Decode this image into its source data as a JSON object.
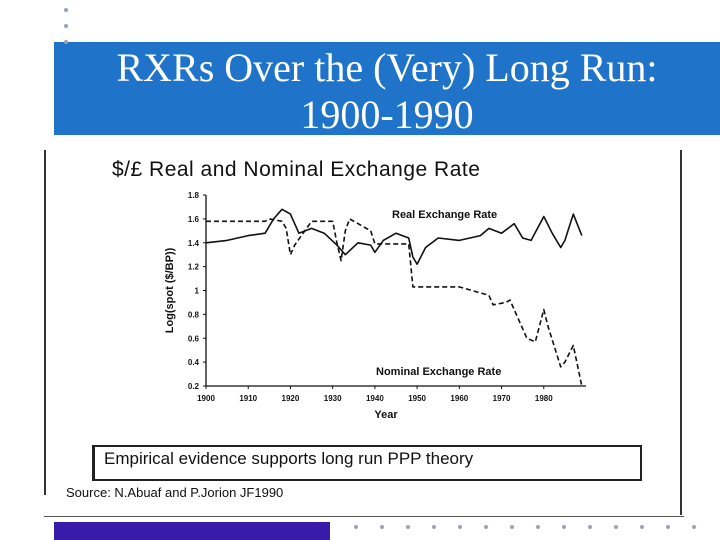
{
  "slide": {
    "title_line1": "RXRs Over the (Very) Long Run:",
    "title_line2": "1900-1990",
    "colors": {
      "title_band": "#1f73c9",
      "title_text": "#ffffff",
      "bottom_band": "#3a1aa8",
      "bullet_dots": "#9aa3b8"
    }
  },
  "figure": {
    "heading": "$/£ Real and Nominal Exchange Rate",
    "note": "Empirical evidence supports long run PPP theory",
    "source": "Source: N.Abuaf and P.Jorion JF1990"
  },
  "chart_data": {
    "type": "line",
    "title": "$/£ Real and Nominal Exchange Rate",
    "xlabel": "Year",
    "ylabel": "Log(spot ($/BP))",
    "xlim": [
      1900,
      1990
    ],
    "ylim": [
      0.2,
      1.8
    ],
    "xticks": [
      "1900",
      "1910",
      "1920",
      "1930",
      "1940",
      "1950",
      "1960",
      "1970",
      "1980"
    ],
    "yticks": [
      "0.2",
      "0.4",
      "0.6",
      "0.8",
      "1",
      "1.2",
      "1.4",
      "1.6",
      "1.8"
    ],
    "series": [
      {
        "name": "Real Exchange Rate",
        "style": "solid",
        "x": [
          1900,
          1905,
          1910,
          1914,
          1916,
          1918,
          1920,
          1922,
          1925,
          1928,
          1931,
          1933,
          1936,
          1939,
          1940,
          1942,
          1945,
          1948,
          1949,
          1950,
          1952,
          1955,
          1960,
          1965,
          1967,
          1970,
          1973,
          1975,
          1977,
          1980,
          1982,
          1984,
          1985,
          1987,
          1989
        ],
        "values": [
          1.4,
          1.42,
          1.46,
          1.48,
          1.6,
          1.68,
          1.64,
          1.48,
          1.52,
          1.48,
          1.38,
          1.3,
          1.4,
          1.38,
          1.32,
          1.42,
          1.48,
          1.44,
          1.28,
          1.22,
          1.36,
          1.44,
          1.42,
          1.46,
          1.52,
          1.48,
          1.56,
          1.44,
          1.42,
          1.62,
          1.48,
          1.36,
          1.42,
          1.64,
          1.46
        ]
      },
      {
        "name": "Nominal Exchange Rate",
        "style": "dashed",
        "x": [
          1900,
          1914,
          1915,
          1918,
          1919,
          1920,
          1921,
          1925,
          1930,
          1931,
          1932,
          1933,
          1934,
          1939,
          1940,
          1945,
          1948,
          1949,
          1950,
          1960,
          1967,
          1968,
          1971,
          1972,
          1976,
          1978,
          1980,
          1981,
          1984,
          1985,
          1987,
          1989
        ],
        "values": [
          1.58,
          1.58,
          1.6,
          1.58,
          1.52,
          1.3,
          1.38,
          1.58,
          1.58,
          1.4,
          1.25,
          1.5,
          1.6,
          1.5,
          1.39,
          1.39,
          1.39,
          1.03,
          1.03,
          1.03,
          0.96,
          0.88,
          0.9,
          0.92,
          0.6,
          0.57,
          0.84,
          0.7,
          0.36,
          0.4,
          0.54,
          0.2
        ]
      }
    ],
    "annotations": [
      "Real Exchange Rate",
      "Nominal Exchange Rate"
    ],
    "grid": false
  }
}
